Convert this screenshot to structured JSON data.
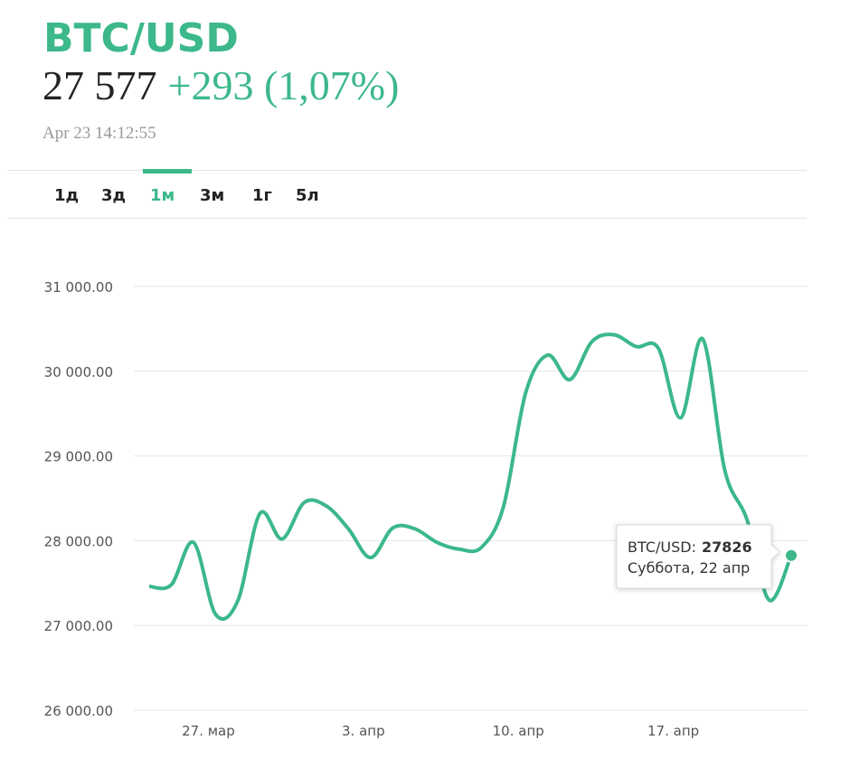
{
  "header": {
    "symbol": "BTC/USD",
    "price": "27 577",
    "change": "+293 (1,07%)",
    "timestamp": "Apr 23 14:12:55"
  },
  "tabs": {
    "items": [
      "1д",
      "3д",
      "1м",
      "3м",
      "1г",
      "5л"
    ],
    "active": "1м"
  },
  "chart_data": {
    "type": "line",
    "color": "#3cb88a",
    "grid": true,
    "categories": [
      null,
      null,
      null,
      "27. мар",
      null,
      null,
      null,
      null,
      null,
      null,
      "3. апр",
      null,
      null,
      null,
      null,
      null,
      null,
      "10. апр",
      null,
      null,
      null,
      null,
      null,
      null,
      "17. апр",
      null,
      null,
      null,
      null,
      null
    ],
    "values": [
      27460,
      27480,
      27980,
      27130,
      27290,
      28320,
      28020,
      28450,
      28410,
      28140,
      27800,
      28150,
      28140,
      27980,
      27900,
      27920,
      28400,
      29740,
      30190,
      29900,
      30350,
      30430,
      30290,
      30270,
      29450,
      30380,
      28830,
      28250,
      27300,
      27826
    ],
    "ylim": [
      26000,
      31000
    ],
    "yticks": [
      {
        "value": 26000,
        "label": "26 000.00"
      },
      {
        "value": 27000,
        "label": "27 000.00"
      },
      {
        "value": 28000,
        "label": "28 000.00"
      },
      {
        "value": 29000,
        "label": "29 000.00"
      },
      {
        "value": 30000,
        "label": "30 000.00"
      },
      {
        "value": 31000,
        "label": "31 000.00"
      }
    ]
  },
  "tooltip": {
    "label": "BTC/USD:",
    "date": "Суббота, 22 апр"
  }
}
